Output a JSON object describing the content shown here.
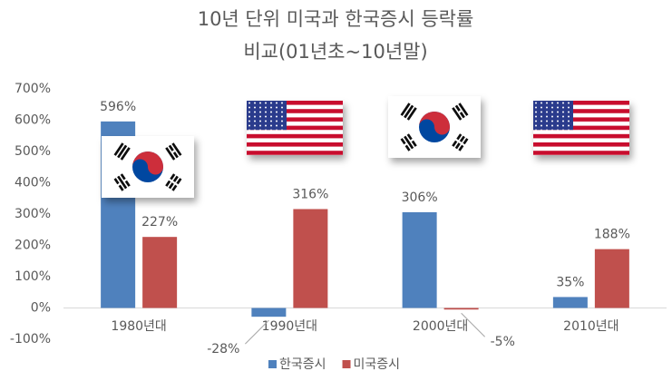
{
  "chart_data": {
    "type": "bar",
    "title": "10년 단위 미국과 한국증시 등락률",
    "subtitle": "비교(01년초~10년말)",
    "categories": [
      "1980년대",
      "1990년대",
      "2000년대",
      "2010년대"
    ],
    "series": [
      {
        "name": "한국증시",
        "color": "#4f81bd",
        "values": [
          596,
          -28,
          306,
          35
        ],
        "value_labels": [
          "596%",
          "-28%",
          "306%",
          "35%"
        ]
      },
      {
        "name": "미국증시",
        "color": "#c0504d",
        "values": [
          227,
          316,
          -5,
          188
        ],
        "value_labels": [
          "227%",
          "316%",
          "-5%",
          "188%"
        ]
      }
    ],
    "ylim": [
      -100,
      700
    ],
    "yticks": [
      {
        "value": -100,
        "label": "-100%"
      },
      {
        "value": 0,
        "label": "0%"
      },
      {
        "value": 100,
        "label": "100%"
      },
      {
        "value": 200,
        "label": "200%"
      },
      {
        "value": 300,
        "label": "300%"
      },
      {
        "value": 400,
        "label": "400%"
      },
      {
        "value": 500,
        "label": "500%"
      },
      {
        "value": 600,
        "label": "600%"
      },
      {
        "value": 700,
        "label": "700%"
      }
    ],
    "grid": false,
    "legend": "bottom"
  }
}
